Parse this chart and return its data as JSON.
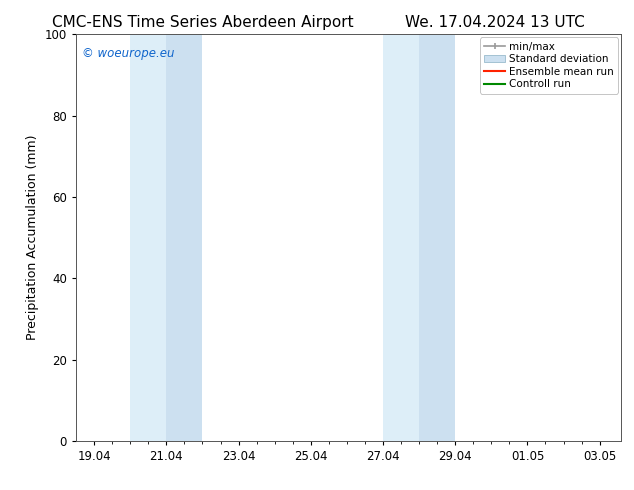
{
  "title_left": "CMC-ENS Time Series Aberdeen Airport",
  "title_right": "We. 17.04.2024 13 UTC",
  "ylabel": "Precipitation Accumulation (mm)",
  "ylim": [
    0,
    100
  ],
  "yticks": [
    0,
    20,
    40,
    60,
    80,
    100
  ],
  "background_color": "#ffffff",
  "plot_bg_color": "#ffffff",
  "shaded_bands": [
    {
      "x_start": 20.0,
      "x_mid": 21.0,
      "x_end": 22.0,
      "color_outer": "#ddeef8",
      "color_inner": "#cce0f0"
    },
    {
      "x_start": 27.0,
      "x_mid": 28.0,
      "x_end": 29.0,
      "color_outer": "#ddeef8",
      "color_inner": "#cce0f0"
    }
  ],
  "x_tick_labels": [
    "19.04",
    "21.04",
    "23.04",
    "25.04",
    "27.04",
    "29.04",
    "01.05",
    "03.05"
  ],
  "xlim_start": 18.5,
  "xlim_end": 33.6,
  "x_tick_positions": [
    19.0,
    21.0,
    23.0,
    25.0,
    27.0,
    29.0,
    31.0,
    33.0
  ],
  "watermark_text": "© woeurope.eu",
  "watermark_color": "#1166cc",
  "legend_labels": [
    "min/max",
    "Standard deviation",
    "Ensemble mean run",
    "Controll run"
  ],
  "legend_colors": [
    "#aaaaaa",
    "#cce0f0",
    "#ff0000",
    "#008000"
  ],
  "title_fontsize": 11,
  "axis_fontsize": 9,
  "tick_fontsize": 8.5,
  "legend_fontsize": 7.5
}
